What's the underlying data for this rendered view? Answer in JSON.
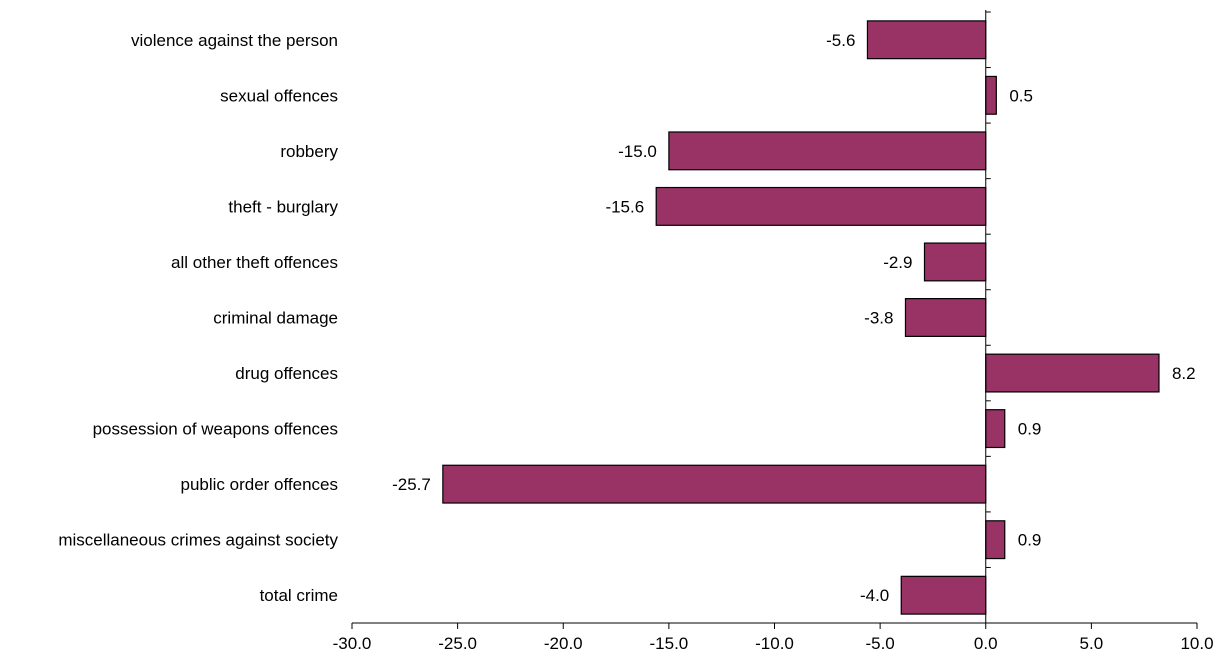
{
  "chart_data": {
    "type": "bar",
    "orientation": "horizontal",
    "title": "",
    "xlabel": "",
    "ylabel": "",
    "categories": [
      "violence against the person",
      "sexual offences",
      "robbery",
      "theft - burglary",
      "all other theft offences",
      "criminal damage",
      "drug offences",
      "possession of weapons offences",
      "public order offences",
      "miscellaneous crimes against society",
      "total crime"
    ],
    "values": [
      -5.6,
      0.5,
      -15.0,
      -15.6,
      -2.9,
      -3.8,
      8.2,
      0.9,
      -25.7,
      0.9,
      -4.0
    ],
    "value_labels": [
      "-5.6",
      "0.5",
      "-15.0",
      "-15.6",
      "-2.9",
      "-3.8",
      "8.2",
      "0.9",
      "-25.7",
      "0.9",
      "-4.0"
    ],
    "xlim": [
      -30,
      10
    ],
    "x_ticks": [
      -30,
      -25,
      -20,
      -15,
      -10,
      -5,
      0,
      5,
      10
    ],
    "x_tick_labels": [
      "-30.0",
      "-25.0",
      "-20.0",
      "-15.0",
      "-10.0",
      "-5.0",
      "0.0",
      "5.0",
      "10.0"
    ],
    "grid": false,
    "legend": "none",
    "bar_color": "#993366",
    "bar_edge_color": "#000000"
  }
}
